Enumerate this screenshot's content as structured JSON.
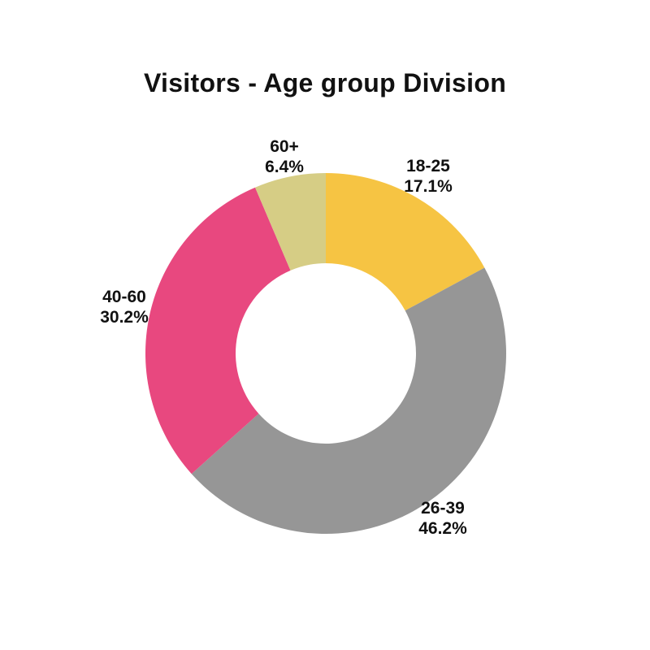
{
  "chart_data": {
    "type": "pie",
    "variant": "donut",
    "title": "Visitors - Age group Division",
    "start_angle": "top",
    "direction": "clockwise",
    "inner_radius_ratio": 0.5,
    "legend": "none",
    "background_color": "#FFFFFF",
    "text_color": "#111111",
    "hole_color": "#FFFFFF",
    "categories": [
      "18-25",
      "26-39",
      "40-60",
      "60+"
    ],
    "values": [
      17.1,
      46.2,
      30.2,
      6.4
    ],
    "colors": [
      "#F6C443",
      "#969696",
      "#E8487F",
      "#D6CD85"
    ],
    "slices": [
      {
        "category": "18-25",
        "value": 17.1,
        "percent_label": "17.1%",
        "color": "#F6C443"
      },
      {
        "category": "26-39",
        "value": 46.2,
        "percent_label": "46.2%",
        "color": "#969696"
      },
      {
        "category": "40-60",
        "value": 30.2,
        "percent_label": "30.2%",
        "color": "#E8487F"
      },
      {
        "category": "60+",
        "value": 6.4,
        "percent_label": "6.4%",
        "color": "#D6CD85"
      }
    ]
  }
}
